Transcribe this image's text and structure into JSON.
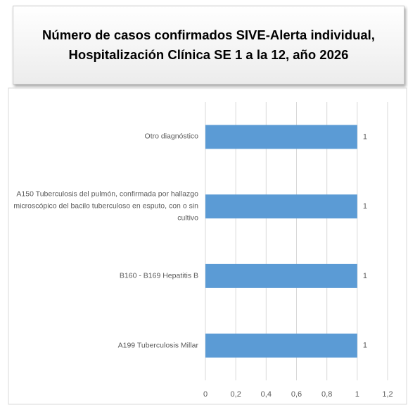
{
  "chart_data": {
    "type": "barh",
    "title": "Número de casos confirmados SIVE-Alerta individual, Hospitalización Clínica SE 1 a la 12, año 2026",
    "categories": [
      "Otro diagnóstico",
      "A150 Tuberculosis del pulmón, confirmada por hallazgo microscópico del bacilo tuberculoso en esputo, con o sin cultivo",
      "B160 - B169 Hepatitis B",
      "A199 Tuberculosis Millar"
    ],
    "values": [
      1,
      1,
      1,
      1
    ],
    "color": "#5b9bd5",
    "xlim": [
      0,
      1.2
    ],
    "xticks": [
      0,
      {
        "value": 0.2,
        "label": "0,2"
      },
      {
        "value": 0.4,
        "label": "0,4"
      },
      {
        "value": 0.6,
        "label": "0,6"
      },
      {
        "value": 0.8,
        "label": "0,8"
      },
      1,
      {
        "value": 1.2,
        "label": "1,2"
      }
    ],
    "grid": true
  }
}
